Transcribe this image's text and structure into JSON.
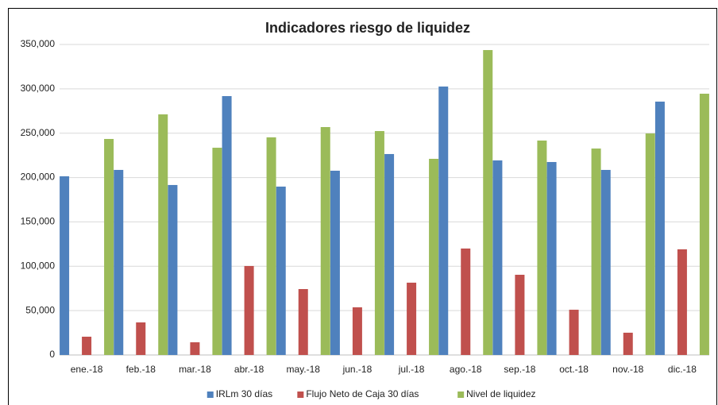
{
  "chart_data": {
    "type": "bar",
    "title": "Indicadores riesgo de liquidez",
    "categories": [
      "ene.-18",
      "feb.-18",
      "mar.-18",
      "abr.-18",
      "may.-18",
      "jun.-18",
      "jul.-18",
      "ago.-18",
      "sep.-18",
      "oct.-18",
      "nov.-18",
      "dic.-18"
    ],
    "series": [
      {
        "name": "IRLm 30 días",
        "color": "#4f81bd",
        "values": [
          201400,
          208600,
          191600,
          291800,
          189800,
          207700,
          226500,
          302600,
          219300,
          217500,
          208600,
          285600
        ]
      },
      {
        "name": "Flujo Neto de Caja 30 días",
        "color": "#c0504d",
        "values": [
          20600,
          36700,
          14300,
          100300,
          74300,
          53700,
          81500,
          120000,
          90400,
          51000,
          25100,
          119100
        ]
      },
      {
        "name": "Nivel de liquidez",
        "color": "#9bbb59",
        "values": [
          243500,
          271200,
          233600,
          245300,
          256900,
          252400,
          221100,
          343700,
          241700,
          232700,
          249700,
          294500
        ]
      }
    ],
    "ylim": [
      0,
      350000
    ],
    "yticks": [
      0,
      {
        "value": 50000,
        "label": "50,000"
      },
      {
        "value": 100000,
        "label": "100,000"
      },
      {
        "value": 150000,
        "label": "150,000"
      },
      {
        "value": 200000,
        "label": "200,000"
      },
      {
        "value": 250000,
        "label": "250,000"
      },
      {
        "value": 300000,
        "label": "300,000"
      },
      {
        "value": 350000,
        "label": "350,000"
      }
    ],
    "grid": true,
    "legend": "bottom"
  }
}
